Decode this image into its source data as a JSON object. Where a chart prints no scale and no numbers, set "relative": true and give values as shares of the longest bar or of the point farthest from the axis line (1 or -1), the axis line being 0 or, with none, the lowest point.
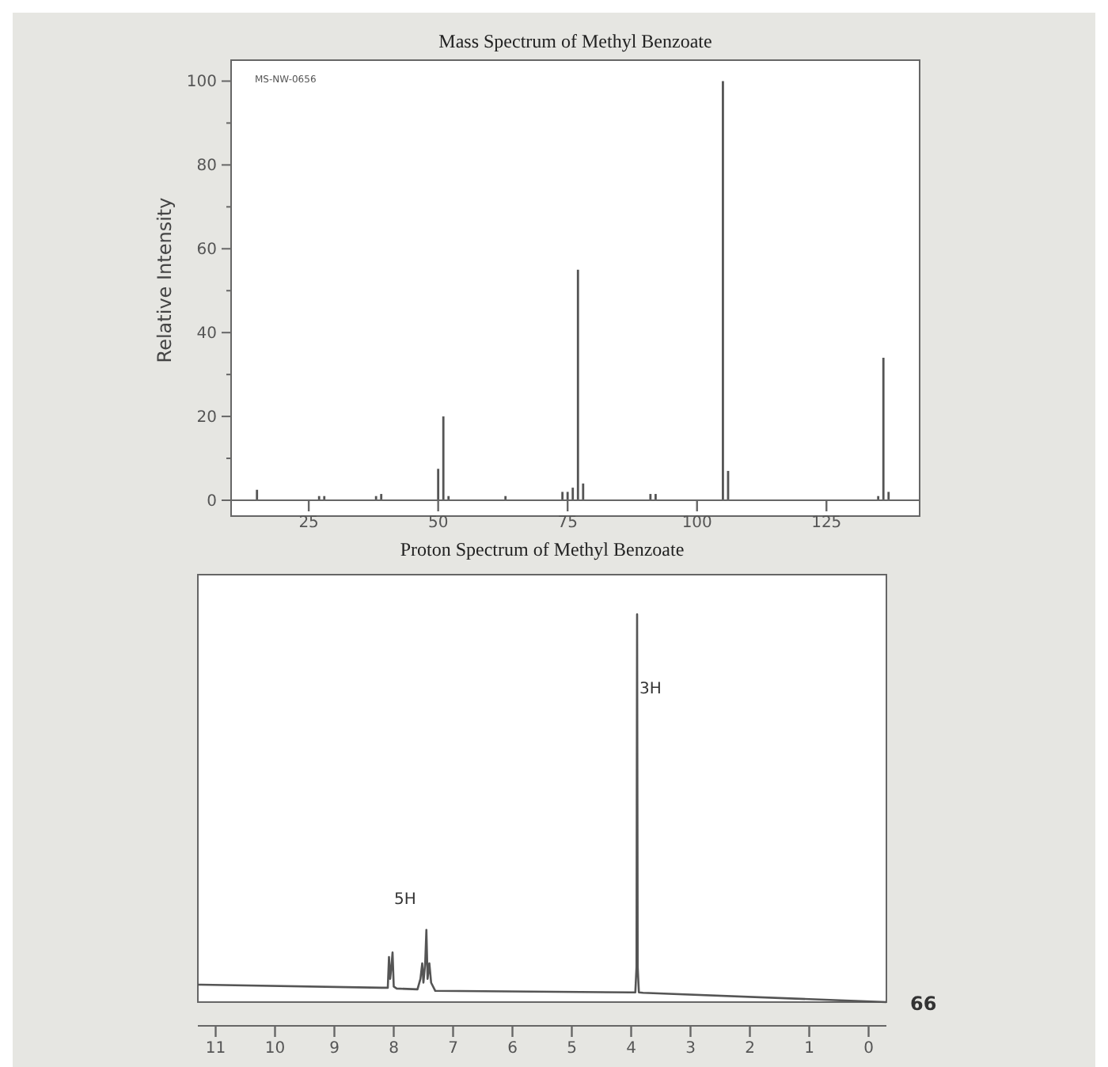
{
  "chart_data": [
    {
      "type": "bar",
      "title": "Mass Spectrum of Methyl Benzoate",
      "ylabel": "Relative Intensity",
      "x": [
        15,
        27,
        28,
        38,
        39,
        50,
        51,
        52,
        63,
        74,
        75,
        76,
        77,
        78,
        91,
        92,
        105,
        106,
        135,
        136,
        137
      ],
      "values": [
        2.5,
        1,
        1,
        1,
        1.5,
        7.5,
        20,
        1,
        1,
        2,
        2,
        3,
        55,
        4,
        1.5,
        1.5,
        100,
        7,
        1,
        34,
        2
      ],
      "color": "#555555",
      "xlim": [
        10,
        143
      ],
      "xticks": [
        25,
        50,
        75,
        100,
        125
      ],
      "ylim": [
        0,
        105
      ],
      "yticks": [
        0,
        {
          "value": 10,
          "label": null
        },
        20,
        {
          "value": 30,
          "label": null
        },
        40,
        {
          "value": 50,
          "label": null
        },
        60,
        {
          "value": 70,
          "label": null
        },
        80,
        {
          "value": 90,
          "label": null
        },
        100
      ],
      "annotations": [
        "MS-NW-0656"
      ]
    },
    {
      "type": "line",
      "title": "Proton Spectrum of Methyl Benzoate",
      "relative": true,
      "x": [
        11.3,
        8.2,
        8.1,
        8.08,
        8.06,
        8.04,
        8.02,
        8.0,
        7.95,
        7.6,
        7.55,
        7.52,
        7.5,
        7.47,
        7.45,
        7.43,
        7.4,
        7.37,
        7.3,
        4.0,
        3.93,
        3.91,
        3.9,
        3.89,
        3.87,
        3.8,
        -0.3
      ],
      "values": [
        0.045,
        0.037,
        0.037,
        0.116,
        0.06,
        0.09,
        0.128,
        0.04,
        0.035,
        0.033,
        0.06,
        0.1,
        0.05,
        0.1,
        0.186,
        0.06,
        0.1,
        0.05,
        0.029,
        0.025,
        0.025,
        0.09,
        1,
        0.09,
        0.025,
        0.024,
        0
      ],
      "color": "#555555",
      "xlim": [
        11.3,
        -0.3
      ],
      "xticks": [
        11,
        10,
        9,
        8,
        7,
        6,
        5,
        4,
        3,
        2,
        1,
        0
      ],
      "annotations": [
        "5H",
        "3H",
        "66"
      ]
    }
  ]
}
